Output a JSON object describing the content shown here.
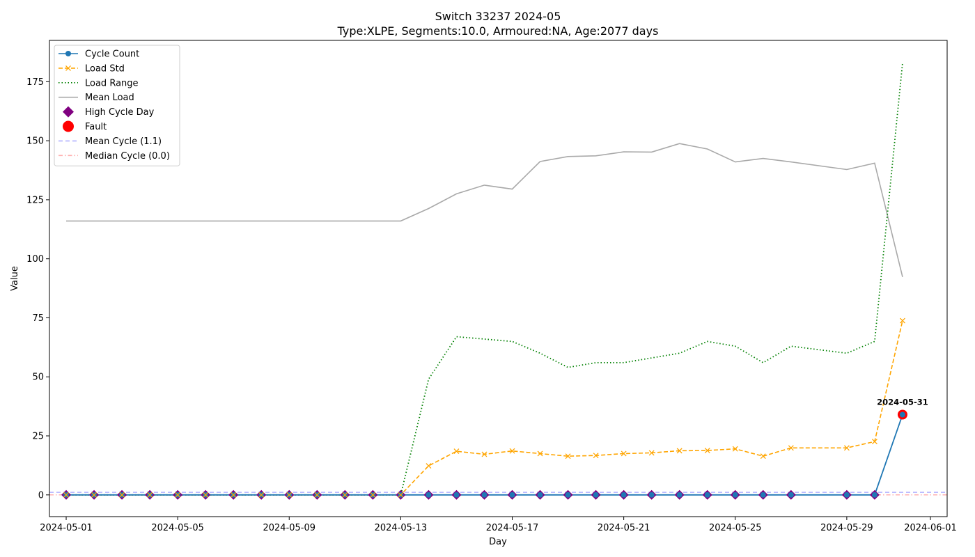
{
  "chart_data": {
    "type": "line",
    "title": "Switch 33237 2024-05",
    "subtitle": "Type:XLPE, Segments:10.0, Armoured:NA, Age:2077 days",
    "xlabel": "Day",
    "ylabel": "Value",
    "xlim": [
      "2024-04-30.4",
      "2024-06-01.6"
    ],
    "ylim": [
      -9.2,
      192.5
    ],
    "x_ticks": [
      "2024-05-01",
      "2024-05-05",
      "2024-05-09",
      "2024-05-13",
      "2024-05-17",
      "2024-05-21",
      "2024-05-25",
      "2024-05-29",
      "2024-06-01"
    ],
    "y_ticks": [
      0,
      25,
      50,
      75,
      100,
      125,
      150,
      175
    ],
    "grid": false,
    "legend_position": "top-left",
    "x": [
      "2024-05-01",
      "2024-05-02",
      "2024-05-03",
      "2024-05-04",
      "2024-05-05",
      "2024-05-06",
      "2024-05-07",
      "2024-05-08",
      "2024-05-09",
      "2024-05-10",
      "2024-05-11",
      "2024-05-12",
      "2024-05-13",
      "2024-05-14",
      "2024-05-15",
      "2024-05-16",
      "2024-05-17",
      "2024-05-18",
      "2024-05-19",
      "2024-05-20",
      "2024-05-21",
      "2024-05-22",
      "2024-05-23",
      "2024-05-24",
      "2024-05-25",
      "2024-05-26",
      "2024-05-27",
      "2024-05-29",
      "2024-05-30",
      "2024-05-31"
    ],
    "series": [
      {
        "name": "Cycle Count",
        "style": "solid-circle",
        "color": "#1f77b4",
        "values": [
          0,
          0,
          0,
          0,
          0,
          0,
          0,
          0,
          0,
          0,
          0,
          0,
          0,
          0,
          0,
          0,
          0,
          0,
          0,
          0,
          0,
          0,
          0,
          0,
          0,
          0,
          0,
          0,
          0,
          34
        ]
      },
      {
        "name": "Load Std",
        "style": "dashed-x",
        "color": "#ffa500",
        "values": [
          0,
          0,
          0,
          0,
          0,
          0,
          0,
          0,
          0,
          0,
          0,
          0,
          0,
          12.3,
          18.5,
          17.2,
          18.6,
          17.5,
          16.4,
          16.7,
          17.5,
          17.8,
          18.7,
          18.8,
          19.5,
          16.4,
          19.9,
          19.9,
          22.6,
          73.8
        ]
      },
      {
        "name": "Load Range",
        "style": "dotted",
        "color": "#008000",
        "values": [
          0,
          0,
          0,
          0,
          0,
          0,
          0,
          0,
          0,
          0,
          0,
          0,
          0,
          49,
          67,
          66,
          65,
          60,
          54,
          56,
          56,
          58,
          60,
          65,
          63,
          56,
          63,
          60,
          65,
          183
        ]
      },
      {
        "name": "Mean Load",
        "style": "solid",
        "color": "#a9a9a9",
        "values": [
          116,
          116,
          116,
          116,
          116,
          116,
          116,
          116,
          116,
          116,
          116,
          116,
          116,
          121.3,
          127.5,
          131.2,
          129.5,
          141.2,
          143.3,
          143.6,
          145.3,
          145.2,
          148.8,
          146.5,
          141,
          142.5,
          141,
          137.8,
          140.5,
          92.3
        ]
      }
    ],
    "high_cycle_days": [
      "2024-05-01",
      "2024-05-02",
      "2024-05-03",
      "2024-05-04",
      "2024-05-05",
      "2024-05-06",
      "2024-05-07",
      "2024-05-08",
      "2024-05-09",
      "2024-05-10",
      "2024-05-11",
      "2024-05-12",
      "2024-05-13",
      "2024-05-14",
      "2024-05-15",
      "2024-05-16",
      "2024-05-17",
      "2024-05-18",
      "2024-05-19",
      "2024-05-20",
      "2024-05-21",
      "2024-05-22",
      "2024-05-23",
      "2024-05-24",
      "2024-05-25",
      "2024-05-26",
      "2024-05-27",
      "2024-05-29",
      "2024-05-30"
    ],
    "high_cycle_value": 0,
    "fault": {
      "x": "2024-05-31",
      "y": 34,
      "label": "2024-05-31",
      "color": "#ff0000"
    },
    "mean_cycle": {
      "value": 1.1,
      "color": "#b0b0ff"
    },
    "median_cycle": {
      "value": 0.0,
      "color": "#ffb0b0"
    },
    "legend": [
      {
        "label": "Cycle Count",
        "kind": "line-marker",
        "color": "#1f77b4",
        "dash": "",
        "marker": "circle"
      },
      {
        "label": "Load Std",
        "kind": "line-marker",
        "color": "#ffa500",
        "dash": "6,3",
        "marker": "x"
      },
      {
        "label": "Load Range",
        "kind": "line",
        "color": "#008000",
        "dash": "1.5,3",
        "marker": ""
      },
      {
        "label": "Mean Load",
        "kind": "line",
        "color": "#a9a9a9",
        "dash": "",
        "marker": ""
      },
      {
        "label": "High Cycle Day",
        "kind": "marker",
        "color": "#800080",
        "dash": "",
        "marker": "diamond"
      },
      {
        "label": "Fault",
        "kind": "marker",
        "color": "#ff0000",
        "dash": "",
        "marker": "bigcircle"
      },
      {
        "label": "Mean Cycle (1.1)",
        "kind": "line",
        "color": "#b0b0ff",
        "dash": "6,4",
        "marker": ""
      },
      {
        "label": "Median Cycle (0.0)",
        "kind": "line",
        "color": "#ffb0b0",
        "dash": "6,3,1.5,3",
        "marker": ""
      }
    ]
  }
}
